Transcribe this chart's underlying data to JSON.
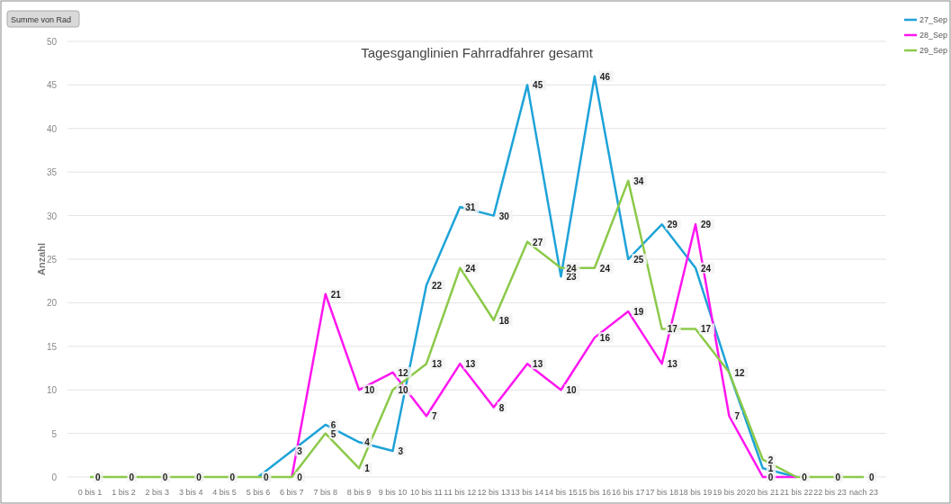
{
  "chart_data": {
    "type": "line",
    "title": "Tagesganglinien  Fahrradfahrer gesamt",
    "ylabel": "Anzahl",
    "annotations": [
      "Summe von Rad"
    ],
    "categories": [
      "0 bis 1",
      "1 bis 2",
      "2 bis 3",
      "3 bis 4",
      "4 bis 5",
      "5 bis 6",
      "6 bis 7",
      "7 bis 8",
      "8 bis 9",
      "9 bis 10",
      "10 bis 11",
      "11 bis 12",
      "12 bis 13",
      "13 bis 14",
      "14 bis 15",
      "15 bis 16",
      "16 bis 17",
      "17 bis 18",
      "18 bis 19",
      "19 bis 20",
      "20 bis 21",
      "21 bis 22",
      "22 bis 23",
      "nach 23"
    ],
    "series": [
      {
        "name": "27_Sep",
        "color": "#1ea3d8",
        "values": [
          null,
          null,
          null,
          null,
          null,
          0,
          3,
          6,
          4,
          3,
          22,
          31,
          30,
          45,
          23,
          46,
          25,
          29,
          24,
          12,
          1,
          0,
          null,
          null
        ],
        "value_labels": [
          null,
          null,
          null,
          null,
          null,
          null,
          "3",
          "6",
          "4",
          "3",
          "22",
          "31",
          "30",
          "45",
          "23",
          "46",
          "25",
          "29",
          "24",
          null,
          "1",
          null,
          null,
          null
        ]
      },
      {
        "name": "28_Sep",
        "color": "#ff16f0",
        "values": [
          null,
          null,
          null,
          null,
          null,
          null,
          0,
          21,
          10,
          12,
          7,
          13,
          8,
          13,
          10,
          16,
          19,
          13,
          29,
          7,
          0,
          0,
          null,
          null
        ],
        "value_labels": [
          null,
          null,
          null,
          null,
          null,
          null,
          null,
          "21",
          "10",
          "12",
          "7",
          "13",
          "8",
          "13",
          "10",
          "16",
          "19",
          "13",
          "29",
          "7",
          "0",
          null,
          null,
          null
        ]
      },
      {
        "name": "29_Sep",
        "color": "#8cc94a",
        "values": [
          0,
          0,
          0,
          0,
          0,
          0,
          0,
          5,
          1,
          10,
          13,
          24,
          18,
          27,
          24,
          24,
          34,
          17,
          17,
          12,
          2,
          0,
          0,
          0
        ],
        "value_labels": [
          "0",
          "0",
          "0",
          "0",
          "0",
          "0",
          "0",
          "5",
          "1",
          "10",
          "13",
          "24",
          "18",
          "27",
          "24",
          "24",
          "34",
          "17",
          "17",
          "12",
          "2",
          "0",
          "0",
          "0"
        ]
      }
    ],
    "ylim": [
      0,
      50
    ],
    "yticks": [
      0,
      5,
      10,
      15,
      20,
      25,
      30,
      35,
      40,
      45,
      50
    ],
    "grid": "y",
    "legend": "top right",
    "marker": "none",
    "line_style": "solid"
  }
}
